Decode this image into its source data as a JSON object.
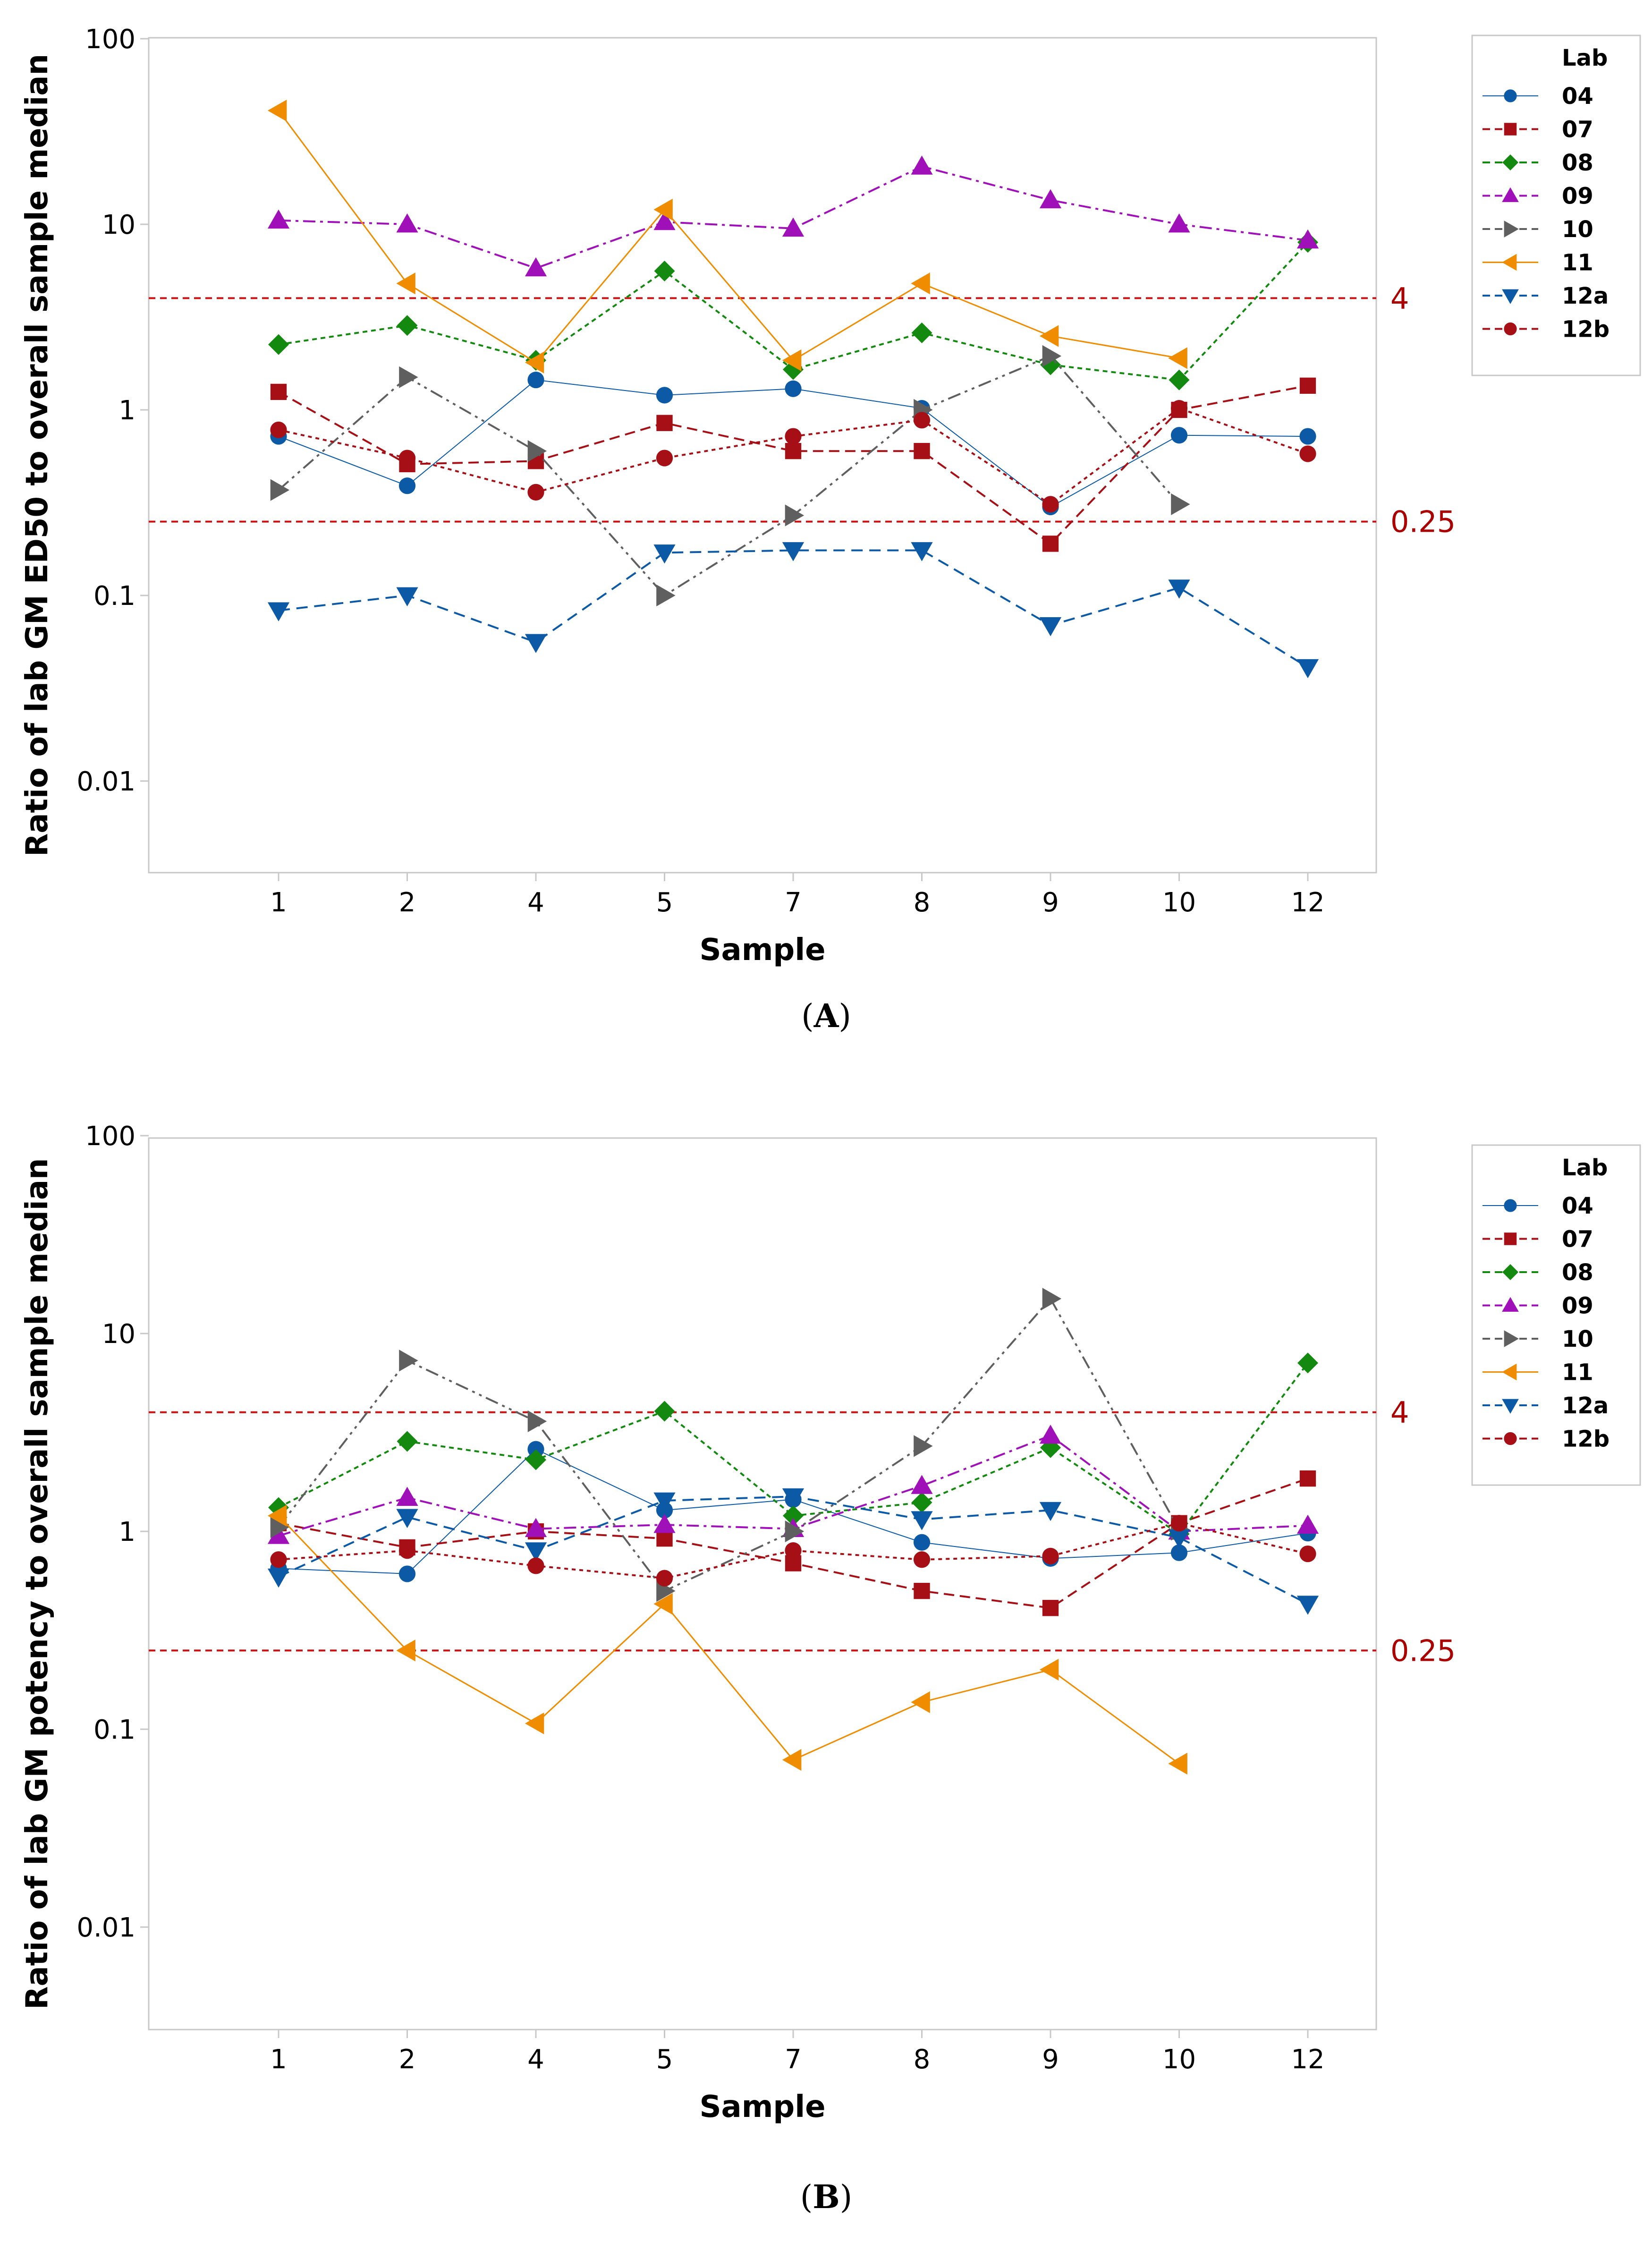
{
  "chart_data": [
    {
      "type": "line",
      "panel_label": "A",
      "ylabel": "Ratio of lab GM ED50 to overall sample median",
      "xlabel": "Sample",
      "categories": [
        "1",
        "2",
        "4",
        "5",
        "7",
        "8",
        "9",
        "10",
        "12"
      ],
      "yscale": "log",
      "ylim": [
        0.002,
        100
      ],
      "yticks": [
        "100",
        "10",
        "1",
        "0.1",
        "0.01"
      ],
      "ref_lines": [
        {
          "value": 4,
          "label": "4"
        },
        {
          "value": 0.25,
          "label": "0.25"
        }
      ],
      "legend_title": "Lab",
      "series": [
        {
          "name": "04",
          "values": [
            0.72,
            0.39,
            1.45,
            1.2,
            1.3,
            1.02,
            0.3,
            0.73,
            0.72
          ]
        },
        {
          "name": "07",
          "values": [
            1.25,
            0.51,
            0.53,
            0.85,
            0.6,
            0.6,
            0.19,
            1.0,
            1.35
          ]
        },
        {
          "name": "08",
          "values": [
            2.25,
            2.85,
            1.85,
            5.6,
            1.65,
            2.6,
            1.75,
            1.45,
            8.0
          ]
        },
        {
          "name": "09",
          "values": [
            10.5,
            10.0,
            5.8,
            10.3,
            9.5,
            20.5,
            13.5,
            10.0,
            8.2
          ]
        },
        {
          "name": "10",
          "values": [
            0.37,
            1.5,
            0.6,
            0.1,
            0.27,
            1.0,
            1.95,
            0.31,
            null
          ]
        },
        {
          "name": "11",
          "values": [
            41.0,
            4.8,
            1.8,
            12.0,
            1.85,
            4.8,
            2.5,
            1.9,
            null
          ]
        },
        {
          "name": "12a",
          "values": [
            0.083,
            0.1,
            0.056,
            0.17,
            0.175,
            0.175,
            0.069,
            0.11,
            0.041
          ]
        },
        {
          "name": "12b",
          "values": [
            0.78,
            0.55,
            0.36,
            0.55,
            0.72,
            0.88,
            0.31,
            1.02,
            0.58
          ]
        }
      ]
    },
    {
      "type": "line",
      "panel_label": "B",
      "ylabel": "Ratio of lab GM potency to overall sample median",
      "xlabel": "Sample",
      "categories": [
        "1",
        "2",
        "4",
        "5",
        "7",
        "8",
        "9",
        "10",
        "12"
      ],
      "yscale": "log",
      "ylim": [
        0.002,
        100
      ],
      "yticks": [
        "100",
        "10",
        "1",
        "0.1",
        "0.01"
      ],
      "ref_lines": [
        {
          "value": 4,
          "label": "4"
        },
        {
          "value": 0.25,
          "label": "0.25"
        }
      ],
      "legend_title": "Lab",
      "series": [
        {
          "name": "04",
          "values": [
            0.65,
            0.61,
            2.6,
            1.28,
            1.45,
            0.88,
            0.73,
            0.78,
            0.98
          ]
        },
        {
          "name": "07",
          "values": [
            1.1,
            0.83,
            1.0,
            0.92,
            0.69,
            0.5,
            0.41,
            1.1,
            1.85
          ]
        },
        {
          "name": "08",
          "values": [
            1.32,
            2.85,
            2.3,
            4.05,
            1.2,
            1.4,
            2.65,
            0.97,
            7.1
          ]
        },
        {
          "name": "09",
          "values": [
            0.95,
            1.48,
            1.03,
            1.08,
            1.03,
            1.7,
            3.05,
            1.0,
            1.07
          ]
        },
        {
          "name": "10",
          "values": [
            1.05,
            7.3,
            3.6,
            0.5,
            1.0,
            2.7,
            15.0,
            1.02,
            null
          ]
        },
        {
          "name": "11",
          "values": [
            1.2,
            0.25,
            0.107,
            0.43,
            0.07,
            0.137,
            0.2,
            0.067,
            null
          ]
        },
        {
          "name": "12a",
          "values": [
            0.59,
            1.18,
            0.8,
            1.43,
            1.5,
            1.15,
            1.28,
            0.93,
            0.43
          ]
        },
        {
          "name": "12b",
          "values": [
            0.72,
            0.8,
            0.67,
            0.58,
            0.8,
            0.72,
            0.75,
            1.1,
            0.77
          ]
        }
      ]
    }
  ],
  "series_styles": [
    {
      "name": "04",
      "color": "#0c5aa6",
      "marker": "circle",
      "dash": "",
      "width": 2
    },
    {
      "name": "07",
      "color": "#a50f15",
      "marker": "square",
      "dash": "22 12",
      "width": 4
    },
    {
      "name": "08",
      "color": "#138a0f",
      "marker": "diamond",
      "dash": "10 8",
      "width": 4
    },
    {
      "name": "09",
      "color": "#a010b8",
      "marker": "triangle-up",
      "dash": "26 10 6 10",
      "width": 4
    },
    {
      "name": "10",
      "color": "#5f5f5f",
      "marker": "triangle-right",
      "dash": "28 10 6 10 6 10",
      "width": 4
    },
    {
      "name": "11",
      "color": "#f08c00",
      "marker": "triangle-left",
      "dash": "",
      "width": 3
    },
    {
      "name": "12a",
      "color": "#0c5aa6",
      "marker": "triangle-down",
      "dash": "24 14",
      "width": 4
    },
    {
      "name": "12b",
      "color": "#a50f15",
      "marker": "circle",
      "dash": "8 8",
      "width": 4
    }
  ],
  "ref_color": "#d01010"
}
